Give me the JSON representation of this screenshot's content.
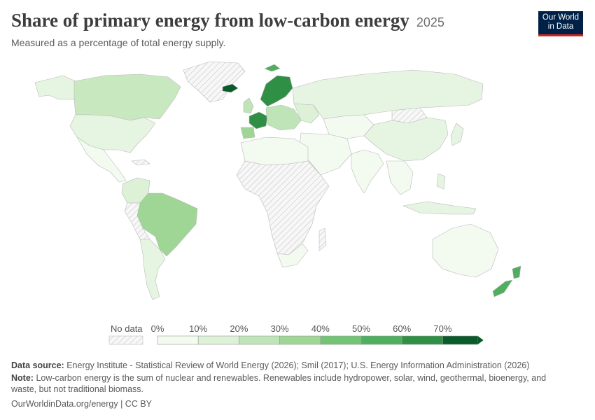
{
  "header": {
    "title": "Share of primary energy from low-carbon energy",
    "year": "2025",
    "subtitle": "Measured as a percentage of total energy supply.",
    "logo_line1": "Our World",
    "logo_line2": "in Data"
  },
  "legend": {
    "no_data_label": "No data",
    "ticks": [
      "0%",
      "10%",
      "20%",
      "30%",
      "40%",
      "50%",
      "60%",
      "70%"
    ],
    "colors": [
      "#f3fbf1",
      "#dcf1d6",
      "#bfe4b8",
      "#9fd695",
      "#74c476",
      "#4fae5f",
      "#2f8f45",
      "#0b5a2a"
    ]
  },
  "footer": {
    "source_label": "Data source:",
    "source_text": "Energy Institute - Statistical Review of World Energy (2026); Smil (2017); U.S. Energy Information Administration (2026)",
    "note_label": "Note:",
    "note_text": "Low-carbon energy is the sum of nuclear and renewables. Renewables include hydropower, solar, wind, geothermal, bioenergy, and waste, but not traditional biomass.",
    "credit": "OurWorldinData.org/energy | CC BY"
  }
}
